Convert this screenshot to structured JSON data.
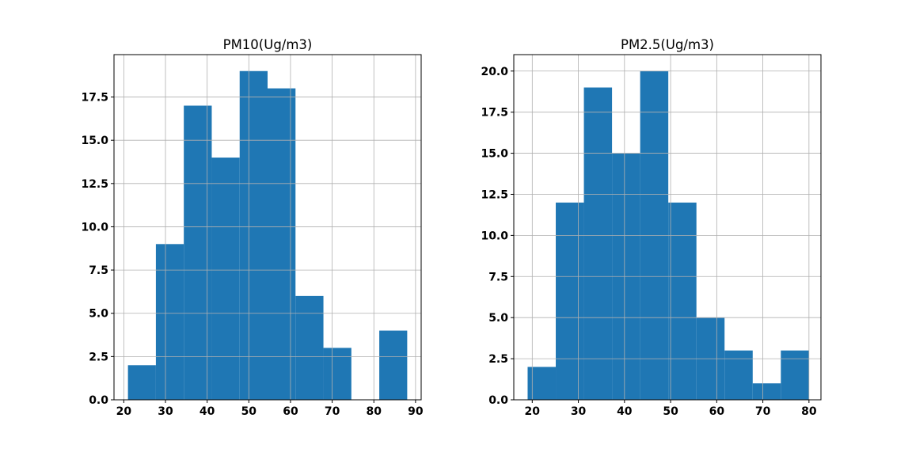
{
  "chart_data": [
    {
      "type": "bar",
      "title": "PM10(Ug/m3)",
      "xlabel": "",
      "ylabel": "",
      "grid": true,
      "xlim": [
        17.65,
        91.35
      ],
      "ylim": [
        0,
        19.95
      ],
      "xticks": [
        20,
        30,
        40,
        50,
        60,
        70,
        80,
        90
      ],
      "yticks": [
        0.0,
        2.5,
        5.0,
        7.5,
        10.0,
        12.5,
        15.0,
        17.5
      ],
      "xtick_labels": [
        "20",
        "30",
        "40",
        "50",
        "60",
        "70",
        "80",
        "90"
      ],
      "ytick_labels": [
        "0.0",
        "2.5",
        "5.0",
        "7.5",
        "10.0",
        "12.5",
        "15.0",
        "17.5"
      ],
      "bin_edges": [
        21.0,
        27.7,
        34.4,
        41.1,
        47.8,
        54.5,
        61.2,
        67.9,
        74.6,
        81.3,
        88.0
      ],
      "values": [
        2,
        9,
        17,
        14,
        19,
        18,
        6,
        3,
        0,
        4
      ]
    },
    {
      "type": "bar",
      "title": "PM2.5(Ug/m3)",
      "xlabel": "",
      "ylabel": "",
      "grid": true,
      "xlim": [
        16.0,
        82.6
      ],
      "ylim": [
        0,
        21.0
      ],
      "xticks": [
        20,
        30,
        40,
        50,
        60,
        70,
        80
      ],
      "yticks": [
        0.0,
        2.5,
        5.0,
        7.5,
        10.0,
        12.5,
        15.0,
        17.5,
        20.0
      ],
      "xtick_labels": [
        "20",
        "30",
        "40",
        "50",
        "60",
        "70",
        "80"
      ],
      "ytick_labels": [
        "0.0",
        "2.5",
        "5.0",
        "7.5",
        "10.0",
        "12.5",
        "15.0",
        "17.5",
        "20.0"
      ],
      "bin_edges": [
        19.0,
        25.1,
        31.2,
        37.3,
        43.4,
        49.5,
        55.6,
        61.7,
        67.8,
        73.9,
        80.0
      ],
      "values": [
        2,
        12,
        19,
        15,
        20,
        12,
        5,
        3,
        1,
        3
      ]
    }
  ],
  "colors": {
    "bar": "#1f77b4",
    "grid": "#b0b0b0"
  }
}
